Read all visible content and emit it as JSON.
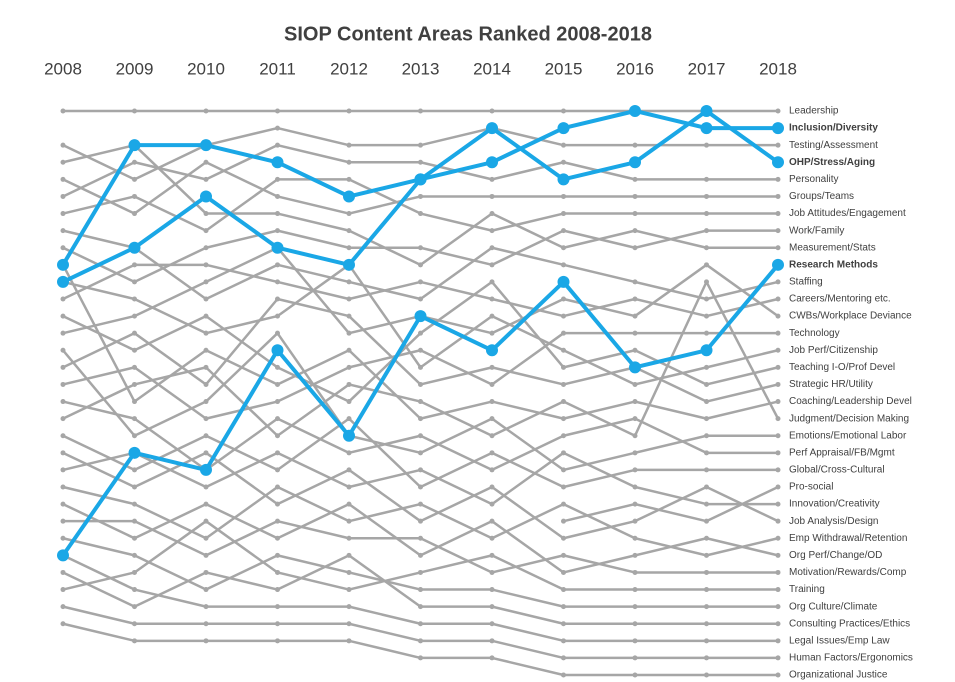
{
  "chart_data": {
    "type": "bump",
    "title": "SIOP Content Areas Ranked 2008-2018",
    "categories": [
      "2008",
      "2009",
      "2010",
      "2011",
      "2012",
      "2013",
      "2014",
      "2015",
      "2016",
      "2017",
      "2018"
    ],
    "ylim": [
      1,
      34
    ],
    "series": [
      {
        "name": "Leadership",
        "color": "#a6a6a6",
        "values": [
          1,
          1,
          1,
          1,
          1,
          1,
          1,
          1,
          1,
          1,
          1
        ]
      },
      {
        "name": "Testing/Assessment",
        "color": "#a6a6a6",
        "values": [
          3,
          5,
          3,
          2,
          3,
          3,
          2,
          3,
          3,
          3,
          3
        ]
      },
      {
        "name": "Personality",
        "color": "#a6a6a6",
        "values": [
          6,
          4,
          5,
          3,
          4,
          4,
          5,
          4,
          5,
          5,
          5
        ]
      },
      {
        "name": "Groups/Teams",
        "color": "#a6a6a6",
        "values": [
          5,
          7,
          4,
          6,
          7,
          6,
          6,
          6,
          6,
          6,
          6
        ]
      },
      {
        "name": "Job Attitudes/Engagement",
        "color": "#a6a6a6",
        "values": [
          7,
          6,
          8,
          5,
          5,
          7,
          8,
          7,
          7,
          7,
          7
        ]
      },
      {
        "name": "Work/Family",
        "color": "#a6a6a6",
        "values": [
          9,
          11,
          9,
          8,
          9,
          9,
          10,
          8,
          9,
          8,
          8
        ]
      },
      {
        "name": "Measurement/Stats",
        "color": "#a6a6a6",
        "values": [
          4,
          3,
          7,
          7,
          8,
          10,
          7,
          9,
          8,
          9,
          9
        ]
      },
      {
        "name": "Staffing",
        "color": "#a6a6a6",
        "values": [
          8,
          9,
          12,
          10,
          11,
          12,
          9,
          10,
          11,
          12,
          11
        ]
      },
      {
        "name": "Careers/Mentoring etc.",
        "color": "#a6a6a6",
        "values": [
          12,
          10,
          10,
          11,
          12,
          11,
          12,
          13,
          12,
          13,
          12
        ]
      },
      {
        "name": "CWBs/Workplace Deviance",
        "color": "#a6a6a6",
        "values": [
          14,
          13,
          11,
          9,
          14,
          13,
          14,
          12,
          13,
          10,
          13
        ]
      },
      {
        "name": "Technology",
        "color": "#a6a6a6",
        "values": [
          17,
          16,
          19,
          18,
          16,
          15,
          17,
          14,
          14,
          14,
          14
        ]
      },
      {
        "name": "Job Perf/Citizenship",
        "color": "#a6a6a6",
        "values": [
          11,
          12,
          14,
          13,
          10,
          16,
          13,
          15,
          17,
          16,
          15
        ]
      },
      {
        "name": "Teaching I-O/Prof Devel",
        "color": "#a6a6a6",
        "values": [
          13,
          15,
          13,
          16,
          18,
          14,
          11,
          16,
          15,
          17,
          16
        ]
      },
      {
        "name": "Strategic HR/Utility",
        "color": "#a6a6a6",
        "values": [
          16,
          14,
          17,
          12,
          13,
          17,
          16,
          17,
          16,
          18,
          17
        ]
      },
      {
        "name": "Coaching/Leadership Devel",
        "color": "#a6a6a6",
        "values": [
          10,
          18,
          15,
          17,
          15,
          19,
          18,
          19,
          18,
          19,
          18
        ]
      },
      {
        "name": "Judgment/Decision Making",
        "color": "#a6a6a6",
        "values": [
          19,
          17,
          16,
          20,
          17,
          18,
          20,
          18,
          20,
          11,
          19
        ]
      },
      {
        "name": "Emotions/Emotional Labor",
        "color": "#a6a6a6",
        "values": [
          15,
          20,
          18,
          14,
          20,
          21,
          19,
          22,
          21,
          20,
          20
        ]
      },
      {
        "name": "Perf Appraisal/FB/Mgmt",
        "color": "#a6a6a6",
        "values": [
          18,
          19,
          22,
          19,
          21,
          20,
          22,
          20,
          19,
          21,
          21
        ]
      },
      {
        "name": "Global/Cross-Cultural",
        "color": "#a6a6a6",
        "values": [
          20,
          22,
          20,
          22,
          19,
          23,
          21,
          23,
          22,
          22,
          22
        ]
      },
      {
        "name": "Pro-social",
        "color": "#a6a6a6",
        "values": [
          null,
          null,
          null,
          null,
          null,
          null,
          null,
          25,
          24,
          25,
          23
        ]
      },
      {
        "name": "Innovation/Creativity",
        "color": "#a6a6a6",
        "values": [
          22,
          21,
          23,
          21,
          23,
          22,
          24,
          21,
          23,
          24,
          24
        ]
      },
      {
        "name": "Job Analysis/Design",
        "color": "#a6a6a6",
        "values": [
          21,
          23,
          21,
          24,
          22,
          25,
          23,
          26,
          25,
          23,
          25
        ]
      },
      {
        "name": "Emp Withdrawal/Retention",
        "color": "#a6a6a6",
        "values": [
          23,
          24,
          26,
          23,
          25,
          24,
          26,
          24,
          26,
          27,
          26
        ]
      },
      {
        "name": "Org Perf/Change/OD",
        "color": "#a6a6a6",
        "values": [
          24,
          26,
          24,
          26,
          24,
          27,
          25,
          28,
          27,
          26,
          27
        ]
      },
      {
        "name": "Motivation/Rewards/Comp",
        "color": "#a6a6a6",
        "values": [
          25,
          25,
          27,
          25,
          26,
          26,
          28,
          27,
          28,
          28,
          28
        ]
      },
      {
        "name": "Training",
        "color": "#a6a6a6",
        "values": [
          29,
          28,
          25,
          28,
          29,
          28,
          27,
          29,
          29,
          29,
          29
        ]
      },
      {
        "name": "Org Culture/Climate",
        "color": "#a6a6a6",
        "values": [
          26,
          27,
          29,
          27,
          28,
          29,
          29,
          30,
          30,
          30,
          30
        ]
      },
      {
        "name": "Consulting Practices/Ethics",
        "color": "#a6a6a6",
        "values": [
          28,
          30,
          28,
          29,
          27,
          30,
          30,
          31,
          31,
          31,
          31
        ]
      },
      {
        "name": "Legal Issues/Emp Law",
        "color": "#a6a6a6",
        "values": [
          27,
          29,
          30,
          30,
          30,
          31,
          31,
          32,
          32,
          32,
          32
        ]
      },
      {
        "name": "Human Factors/Ergonomics",
        "color": "#a6a6a6",
        "values": [
          30,
          31,
          31,
          31,
          31,
          32,
          32,
          33,
          33,
          33,
          33
        ]
      },
      {
        "name": "Organizational Justice",
        "color": "#a6a6a6",
        "values": [
          31,
          32,
          32,
          32,
          32,
          33,
          33,
          34,
          34,
          34,
          34
        ]
      },
      {
        "name": "Inclusion/Diversity",
        "color": "#1aa7e6",
        "values": [
          10,
          3,
          3,
          4,
          6,
          5,
          4,
          2,
          1,
          2,
          2
        ]
      },
      {
        "name": "OHP/Stress/Aging",
        "color": "#1aa7e6",
        "values": [
          11,
          9,
          6,
          9,
          10,
          5,
          2,
          5,
          4,
          1,
          4
        ]
      },
      {
        "name": "Research Methods",
        "color": "#1aa7e6",
        "values": [
          27,
          21,
          22,
          15,
          20,
          13,
          15,
          11,
          16,
          15,
          10
        ]
      }
    ]
  }
}
